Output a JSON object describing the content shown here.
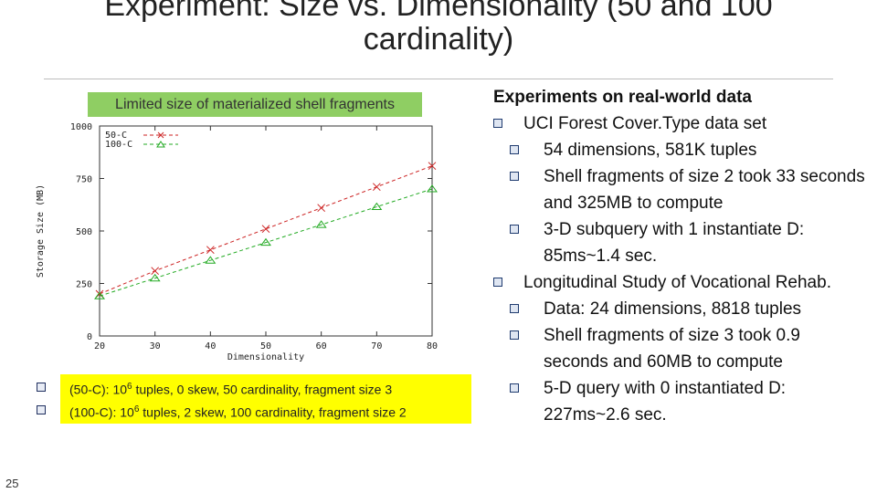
{
  "slide": {
    "title": "Experiment: Size vs. Dimensionality (50 and 100 cardinality)",
    "page_number": "25"
  },
  "chart_label": "Limited size of materialized shell fragments",
  "legend_notes": [
    {
      "prefix": "(50-C): 10",
      "sup": "6",
      "rest": " tuples, 0 skew, 50 cardinality, fragment size 3"
    },
    {
      "prefix": "(100-C): 10",
      "sup": "6",
      "rest": " tuples, 2 skew, 100 cardinality, fragment size 2"
    }
  ],
  "right_panel": {
    "heading": "Experiments on real-world data",
    "items": [
      {
        "text": "UCI Forest Cover.Type data set",
        "level": 1
      },
      {
        "text": "54 dimensions, 581K tuples",
        "level": 2
      },
      {
        "text": "Shell fragments of size 2 took 33 seconds and 325MB to compute",
        "level": 2
      },
      {
        "text": "3-D subquery with 1 instantiate D: 85ms~1.4 sec.",
        "level": 2
      },
      {
        "text": "Longitudinal Study of Vocational Rehab.",
        "level": 1
      },
      {
        "text": "Data: 24 dimensions, 8818 tuples",
        "level": 2
      },
      {
        "text": "Shell fragments of size 3 took 0.9 seconds and 60MB to compute",
        "level": 2
      },
      {
        "text": "5-D query with 0 instantiated D: 227ms~2.6 sec.",
        "level": 2
      }
    ]
  },
  "chart_data": {
    "type": "line",
    "title": "",
    "xlabel": "Dimensionality",
    "ylabel": "Storage Size (MB)",
    "x": [
      20,
      30,
      40,
      50,
      60,
      70,
      80
    ],
    "xlim": [
      20,
      80
    ],
    "ylim": [
      0,
      1000
    ],
    "xticks": [
      "20",
      "30",
      "40",
      "50",
      "60",
      "70",
      "80"
    ],
    "yticks": [
      "0",
      "250",
      "500",
      "750",
      "1000"
    ],
    "legend_position": "top-left",
    "grid": false,
    "series": [
      {
        "name": "50-C",
        "values": [
          200,
          310,
          410,
          510,
          610,
          710,
          810
        ],
        "color": "#cc2222",
        "marker": "x"
      },
      {
        "name": "100-C",
        "values": [
          190,
          275,
          360,
          445,
          530,
          615,
          700
        ],
        "color": "#22aa22",
        "marker": "triangle"
      }
    ]
  }
}
